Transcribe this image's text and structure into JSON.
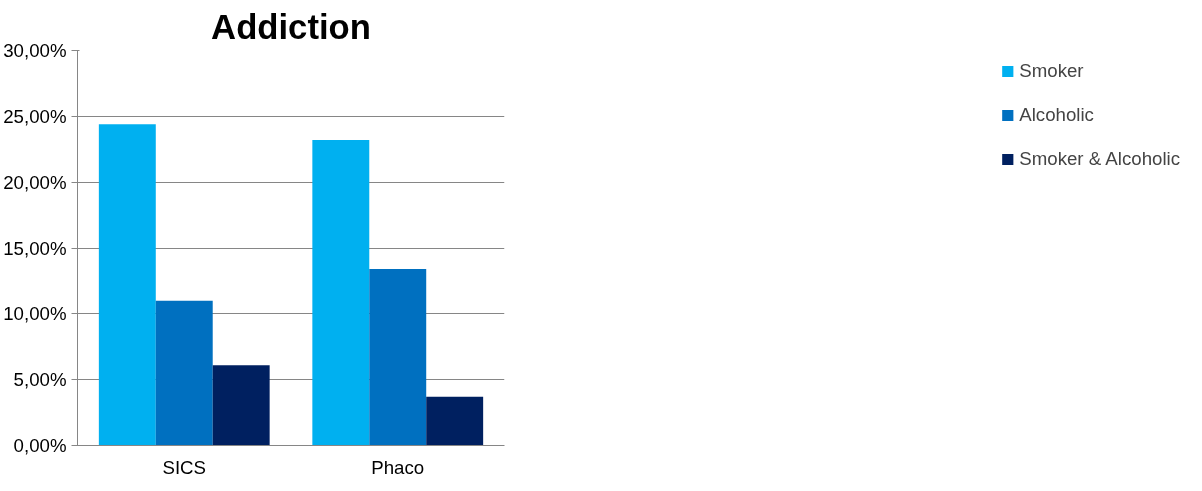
{
  "chart_data": {
    "type": "bar",
    "title": "Addiction",
    "categories": [
      "SICS",
      "Phaco"
    ],
    "series": [
      {
        "name": "Smoker",
        "color": "#00b0f0",
        "values": [
          24.4,
          23.2
        ]
      },
      {
        "name": "Alcoholic",
        "color": "#0070c0",
        "values": [
          11.0,
          13.4
        ]
      },
      {
        "name": "Smoker & Alcoholic",
        "color": "#002060",
        "values": [
          6.1,
          3.7
        ]
      }
    ],
    "ylim": [
      0,
      30
    ],
    "yticks": [
      {
        "value": 0,
        "label": "0,00%"
      },
      {
        "value": 5,
        "label": "5,00%"
      },
      {
        "value": 10,
        "label": "10,00%"
      },
      {
        "value": 15,
        "label": "15,00%"
      },
      {
        "value": 20,
        "label": "20,00%"
      },
      {
        "value": 25,
        "label": "25,00%"
      },
      {
        "value": 30,
        "label": "30,00%"
      }
    ],
    "grid": "y",
    "legend": "right"
  }
}
